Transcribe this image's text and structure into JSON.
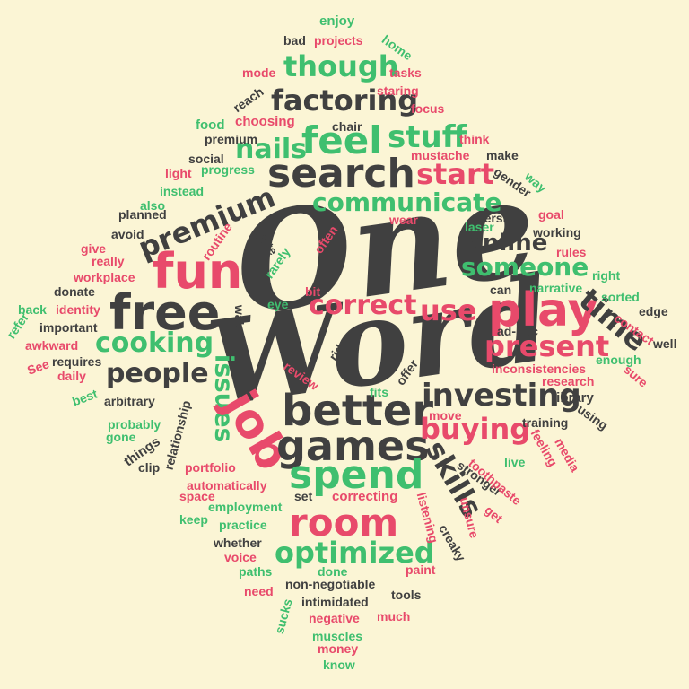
{
  "colors": {
    "background": "#fbf5d5",
    "dark": "#404040",
    "pink": "#e84a6b",
    "green": "#3fbf6f"
  },
  "words": {
    "one": "One",
    "word": "Word",
    "search": "search",
    "factoring": "factoring",
    "feel": "feel",
    "though": "though",
    "stuff": "stuff",
    "nails": "nails",
    "communicate": "communicate",
    "start": "start",
    "premium_big": "premium",
    "fun": "fun",
    "free": "free",
    "online": "online",
    "someone": "someone",
    "play": "play",
    "correct": "correct",
    "use": "use",
    "time": "time",
    "cooking": "cooking",
    "present": "present",
    "people": "people",
    "issues": "issues",
    "better": "better",
    "investing": "investing",
    "job": "job",
    "games": "games",
    "buying": "buying",
    "spend": "spend",
    "skills": "skills",
    "room": "room",
    "optimized": "optimized",
    "enjoy": "enjoy",
    "bad": "bad",
    "projects": "projects",
    "home": "home",
    "mode": "mode",
    "tasks": "tasks",
    "staring": "staring",
    "reach": "reach",
    "focus": "focus",
    "food": "food",
    "choosing": "choosing",
    "chair": "chair",
    "premium_small": "premium",
    "think": "think",
    "make": "make",
    "social": "social",
    "mustache": "mustache",
    "light": "light",
    "progress": "progress",
    "gender": "gender",
    "way": "way",
    "instead": "instead",
    "also": "also",
    "planned": "planned",
    "avoid": "avoid",
    "routine": "routine",
    "quite": "quite",
    "rarely": "rarely",
    "wear": "wear",
    "often": "often",
    "laser": "laser",
    "aversion": "aversion",
    "goal": "goal",
    "working": "working",
    "give": "give",
    "really": "really",
    "rules": "rules",
    "workplace": "workplace",
    "right": "right",
    "narrative": "narrative",
    "donate": "donate",
    "bit": "bit",
    "can": "can",
    "sorted": "sorted",
    "back": "back",
    "identity": "identity",
    "eye": "eye",
    "wake": "wake",
    "edge": "edge",
    "refer": "refer",
    "important": "important",
    "ad_hoc": "ad-hoc",
    "contact": "contact",
    "awkward": "awkward",
    "rid": "rid",
    "well": "well",
    "requires": "requires",
    "enough": "enough",
    "see": "See",
    "daily": "daily",
    "review": "review",
    "offer": "offer",
    "inconsistencies": "inconsistencies",
    "sure": "sure",
    "research": "research",
    "best": "best",
    "arbitrary": "arbitrary",
    "fits": "fits",
    "library": "library",
    "using": "using",
    "relationship": "relationship",
    "move": "move",
    "training": "training",
    "probably": "probably",
    "gone": "gone",
    "things": "things",
    "feeling": "feeling",
    "media": "media",
    "live": "live",
    "clip": "clip",
    "portfolio": "portfolio",
    "stronger": "stronger",
    "toothpaste": "toothpaste",
    "automatically": "automatically",
    "space": "space",
    "set": "set",
    "correcting": "correcting",
    "employment": "employment",
    "unsure": "unsure",
    "keep": "keep",
    "listening": "listening",
    "get": "get",
    "practice": "practice",
    "creaky": "creaky",
    "whether": "whether",
    "voice": "voice",
    "paths": "paths",
    "done": "done",
    "paint": "paint",
    "non_negotiable": "non-negotiable",
    "need": "need",
    "tools": "tools",
    "intimidated": "intimidated",
    "sucks": "sucks",
    "negative": "negative",
    "much": "much",
    "muscles": "muscles",
    "money": "money",
    "know": "know"
  }
}
